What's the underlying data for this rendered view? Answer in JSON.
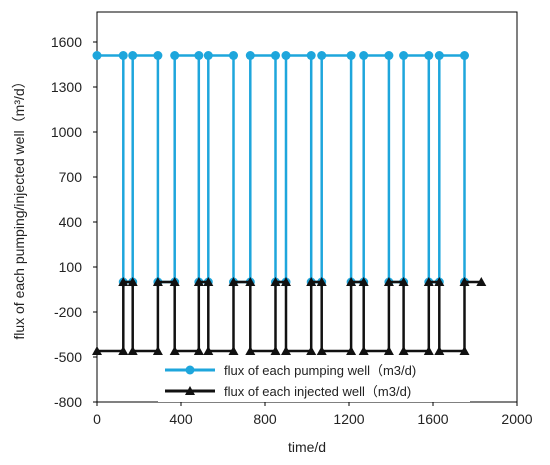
{
  "chart_data": {
    "type": "line",
    "title": "",
    "xlabel": "time/d",
    "ylabel": "flux of each pumping/injected well（m³/d）",
    "xlim": [
      0,
      2000
    ],
    "ylim": [
      -800,
      1800
    ],
    "x_ticks": [
      0,
      400,
      800,
      1200,
      1600,
      2000
    ],
    "y_ticks": [
      -800,
      -500,
      -200,
      100,
      400,
      700,
      1000,
      1300,
      1600
    ],
    "x_tick_labels": [
      "0",
      "400",
      "800",
      "1200",
      "1600",
      "2000"
    ],
    "y_tick_labels": [
      "-800",
      "-500",
      "-200",
      "100",
      "400",
      "700",
      "1000",
      "1300",
      "1600"
    ],
    "grid": false,
    "legend_position": "bottom-center",
    "series": [
      {
        "name": "flux of each pumping well（m3/d)",
        "color": "#1ea6dc",
        "marker": "circle",
        "points": [
          [
            0,
            1510
          ],
          [
            125,
            1510
          ],
          [
            125,
            0
          ],
          [
            170,
            0
          ],
          [
            170,
            1510
          ],
          [
            290,
            1510
          ],
          [
            290,
            0
          ],
          [
            370,
            0
          ],
          [
            370,
            1510
          ],
          [
            485,
            1510
          ],
          [
            485,
            0
          ],
          [
            530,
            0
          ],
          [
            530,
            1510
          ],
          [
            650,
            1510
          ],
          [
            650,
            0
          ],
          [
            730,
            0
          ],
          [
            730,
            1510
          ],
          [
            850,
            1510
          ],
          [
            850,
            0
          ],
          [
            900,
            0
          ],
          [
            900,
            1510
          ],
          [
            1020,
            1510
          ],
          [
            1020,
            0
          ],
          [
            1070,
            0
          ],
          [
            1070,
            1510
          ],
          [
            1210,
            1510
          ],
          [
            1210,
            0
          ],
          [
            1270,
            0
          ],
          [
            1270,
            1510
          ],
          [
            1390,
            1510
          ],
          [
            1390,
            0
          ],
          [
            1460,
            0
          ],
          [
            1460,
            1510
          ],
          [
            1580,
            1510
          ],
          [
            1580,
            0
          ],
          [
            1630,
            0
          ],
          [
            1630,
            1510
          ],
          [
            1750,
            1510
          ],
          [
            1750,
            0
          ]
        ]
      },
      {
        "name": "flux of each injected well（m3/d)",
        "color": "#111111",
        "marker": "triangle",
        "points": [
          [
            0,
            -460
          ],
          [
            125,
            -460
          ],
          [
            125,
            0
          ],
          [
            170,
            0
          ],
          [
            170,
            -460
          ],
          [
            290,
            -460
          ],
          [
            290,
            0
          ],
          [
            370,
            0
          ],
          [
            370,
            -460
          ],
          [
            485,
            -460
          ],
          [
            485,
            0
          ],
          [
            530,
            0
          ],
          [
            530,
            -460
          ],
          [
            650,
            -460
          ],
          [
            650,
            0
          ],
          [
            730,
            0
          ],
          [
            730,
            -460
          ],
          [
            850,
            -460
          ],
          [
            850,
            0
          ],
          [
            900,
            0
          ],
          [
            900,
            -460
          ],
          [
            1020,
            -460
          ],
          [
            1020,
            0
          ],
          [
            1070,
            0
          ],
          [
            1070,
            -460
          ],
          [
            1210,
            -460
          ],
          [
            1210,
            0
          ],
          [
            1270,
            0
          ],
          [
            1270,
            -460
          ],
          [
            1390,
            -460
          ],
          [
            1390,
            0
          ],
          [
            1460,
            0
          ],
          [
            1460,
            -460
          ],
          [
            1580,
            -460
          ],
          [
            1580,
            0
          ],
          [
            1630,
            0
          ],
          [
            1630,
            -460
          ],
          [
            1750,
            -460
          ],
          [
            1750,
            0
          ],
          [
            1830,
            0
          ]
        ]
      }
    ]
  }
}
